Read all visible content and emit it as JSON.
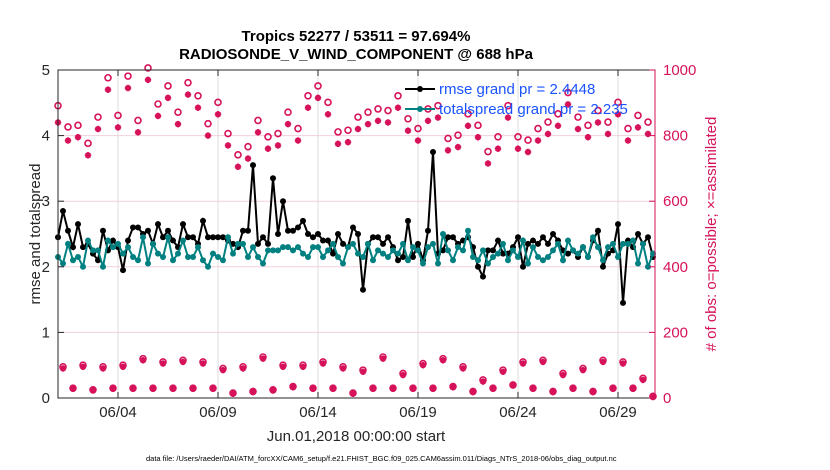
{
  "chart_data": {
    "type": "line",
    "title": [
      "Tropics 52277 / 53511 = 97.694%",
      "RADIOSONDE_V_WIND_COMPONENT @ 688 hPa"
    ],
    "xlabel": "Jun.01,2018 00:00:00 start",
    "ylabel": "rmse and totalspread",
    "y2label": "# of obs: o=possible; ×=assimilated",
    "footnote": "data file: /Users/raeder/DAI/ATM_forcXX/CAM6_setup/f.e21.FHIST_BGC.f09_025.CAM6assim.011/Diags_NTrS_2018-06/obs_diag_output.nc",
    "x_unit": "days since Jun.01,2018 00:00:00",
    "xlim": [
      0,
      29.85
    ],
    "ylim": [
      0,
      5
    ],
    "y2lim": [
      0,
      1000
    ],
    "xticks": [
      {
        "value": 3,
        "label": "06/04"
      },
      {
        "value": 8,
        "label": "06/09"
      },
      {
        "value": 13,
        "label": "06/14"
      },
      {
        "value": 18,
        "label": "06/19"
      },
      {
        "value": 23,
        "label": "06/24"
      },
      {
        "value": 28,
        "label": "06/29"
      }
    ],
    "yticks": [
      0,
      1,
      2,
      3,
      4,
      5
    ],
    "y2ticks": [
      0,
      200,
      400,
      600,
      800,
      1000
    ],
    "grid": true,
    "legend": {
      "placement": "top-right",
      "entries": [
        "rmse grand pr = 2.4448",
        "totalspread grand pr = 2.235"
      ]
    },
    "time_step_days": 0.25,
    "series": [
      {
        "name": "rmse",
        "color": "#000000",
        "axis": "left",
        "values": [
          2.45,
          2.85,
          2.55,
          2.3,
          2.65,
          2.3,
          2.35,
          2.2,
          2.1,
          2.55,
          2.25,
          2.4,
          2.3,
          1.95,
          2.4,
          2.6,
          2.6,
          2.5,
          2.55,
          2.35,
          2.65,
          2.45,
          2.55,
          2.4,
          2.3,
          2.65,
          2.45,
          2.45,
          2.35,
          2.7,
          2.45,
          2.45,
          2.45,
          2.45,
          2.4,
          2.35,
          2.3,
          2.55,
          2.55,
          3.55,
          2.35,
          2.45,
          2.35,
          3.35,
          2.5,
          3.0,
          2.55,
          2.55,
          2.6,
          2.7,
          2.5,
          2.45,
          2.5,
          2.4,
          2.4,
          2.2,
          2.5,
          2.35,
          2.3,
          2.6,
          2.5,
          1.65,
          2.35,
          2.45,
          2.45,
          2.35,
          2.45,
          2.3,
          2.1,
          2.15,
          2.7,
          2.15,
          2.35,
          2.1,
          2.55,
          3.75,
          2.2,
          2.25,
          2.45,
          2.45,
          2.35,
          2.4,
          2.45,
          2.3,
          2.0,
          1.85,
          2.25,
          2.25,
          2.4,
          2.2,
          2.2,
          2.3,
          2.45,
          2.0,
          2.35,
          2.4,
          2.35,
          2.45,
          2.35,
          2.5,
          2.4,
          2.25,
          2.2,
          2.25,
          2.15,
          2.3,
          2.15,
          2.4,
          2.55,
          2.0,
          2.2,
          2.25,
          2.65,
          1.45,
          2.4,
          2.3,
          2.5,
          2.35,
          2.45,
          2.15
        ]
      },
      {
        "name": "totalspread",
        "color": "#008080",
        "axis": "left",
        "values": [
          2.15,
          2.05,
          2.35,
          2.1,
          2.15,
          2.0,
          2.4,
          2.25,
          2.25,
          2.0,
          2.4,
          2.3,
          2.35,
          2.2,
          2.3,
          2.15,
          2.1,
          2.45,
          2.05,
          2.35,
          2.2,
          2.15,
          2.45,
          2.1,
          2.2,
          2.4,
          2.15,
          2.15,
          2.3,
          2.1,
          2.0,
          2.2,
          2.15,
          2.1,
          2.45,
          2.2,
          2.35,
          2.35,
          2.15,
          2.3,
          2.15,
          2.05,
          2.25,
          2.25,
          2.25,
          2.3,
          2.3,
          2.25,
          2.3,
          2.2,
          2.15,
          2.3,
          2.3,
          2.15,
          2.25,
          2.35,
          2.15,
          2.05,
          2.3,
          2.35,
          2.2,
          2.15,
          2.35,
          2.1,
          2.25,
          2.2,
          2.15,
          2.25,
          2.2,
          2.35,
          2.1,
          2.3,
          2.25,
          2.05,
          2.3,
          2.35,
          2.05,
          2.5,
          2.25,
          2.1,
          2.3,
          2.25,
          2.55,
          2.15,
          2.1,
          2.25,
          2.05,
          2.15,
          2.2,
          2.35,
          2.1,
          2.25,
          2.15,
          2.4,
          2.05,
          2.3,
          2.15,
          2.1,
          2.15,
          2.25,
          2.35,
          2.1,
          2.4,
          2.25,
          2.2,
          2.3,
          2.15,
          2.45,
          2.3,
          2.1,
          2.3,
          2.35,
          2.15,
          2.35,
          2.35,
          2.4,
          2.05,
          2.35,
          2.0,
          2.2
        ]
      },
      {
        "name": "possible",
        "marker": "o",
        "color": "#d6125a",
        "axis": "right",
        "values": [
          870,
          805,
          810,
          755,
          835,
          955,
          840,
          960,
          825,
          985,
          875,
          930,
          850,
          940,
          900,
          815,
          880,
          785,
          720,
          745,
          825,
          775,
          785,
          850,
          800,
          900,
          930,
          880,
          790,
          795,
          835,
          850,
          860,
          855,
          900,
          830,
          800,
          860,
          870,
          770,
          780,
          845,
          810,
          730,
          775,
          870,
          775,
          765,
          800,
          820,
          845,
          910,
          835,
          810,
          855,
          820,
          880,
          800,
          840,
          820
        ]
      },
      {
        "name": "assimilated",
        "marker": "*",
        "color": "#d6125a",
        "axis": "right",
        "values": [
          840,
          785,
          795,
          740,
          820,
          940,
          825,
          945,
          810,
          970,
          860,
          915,
          835,
          925,
          885,
          800,
          865,
          770,
          705,
          730,
          810,
          760,
          770,
          835,
          785,
          885,
          915,
          865,
          775,
          780,
          820,
          835,
          845,
          840,
          885,
          815,
          785,
          845,
          855,
          755,
          765,
          830,
          795,
          715,
          760,
          855,
          760,
          750,
          785,
          805,
          830,
          895,
          820,
          795,
          840,
          805,
          865,
          785,
          825,
          805
        ]
      },
      {
        "name": "possible_offhours",
        "marker": "o",
        "color": "#d6125a",
        "axis": "right",
        "values": [
          95,
          30,
          100,
          25,
          95,
          30,
          100,
          30,
          120,
          30,
          110,
          30,
          115,
          30,
          110,
          30,
          90,
          15,
          95,
          20,
          125,
          25,
          100,
          35,
          100,
          30,
          110,
          30,
          95,
          15,
          85,
          30,
          125,
          30,
          75,
          30,
          105,
          30,
          120,
          35,
          95,
          20,
          55,
          30,
          85,
          40,
          110,
          30,
          115,
          20,
          75,
          30,
          90,
          20,
          115,
          30,
          110,
          30,
          60,
          5
        ]
      },
      {
        "name": "assimilated_offhours",
        "marker": "*",
        "color": "#d6125a",
        "axis": "right",
        "values": [
          90,
          28,
          95,
          23,
          90,
          28,
          95,
          28,
          115,
          28,
          105,
          28,
          110,
          28,
          105,
          28,
          85,
          13,
          90,
          18,
          120,
          23,
          95,
          33,
          95,
          28,
          105,
          28,
          90,
          13,
          80,
          28,
          120,
          28,
          70,
          28,
          100,
          28,
          115,
          33,
          90,
          18,
          50,
          28,
          80,
          38,
          105,
          28,
          110,
          18,
          70,
          28,
          85,
          18,
          110,
          28,
          105,
          28,
          55,
          3
        ]
      }
    ]
  }
}
